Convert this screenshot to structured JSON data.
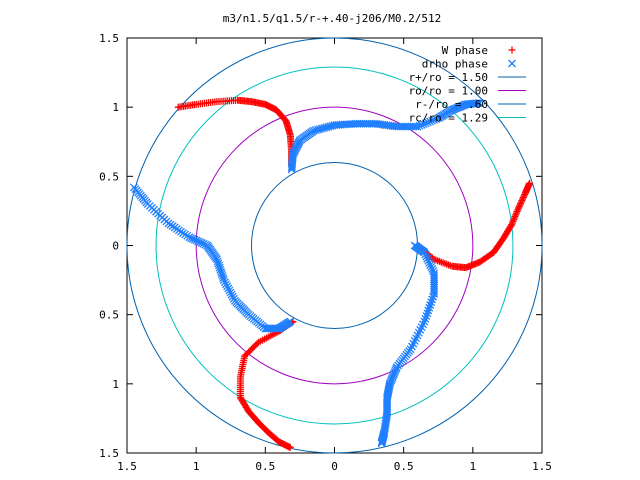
{
  "chart_data": {
    "type": "scatter",
    "title": "m3/n1.5/q1.5/r-+.40-j206/M0.2/512",
    "xlabel": "",
    "ylabel": "",
    "xlim": [
      -1.5,
      1.5
    ],
    "ylim": [
      -1.5,
      1.5
    ],
    "x_ticks": [
      -1.5,
      -1,
      -0.5,
      0,
      0.5,
      1,
      1.5
    ],
    "y_ticks": [
      -1.5,
      -1,
      -0.5,
      0,
      0.5,
      1,
      1.5
    ],
    "x_tick_labels": [
      "1.5",
      "1",
      "0.5",
      "0",
      "0.5",
      "1",
      "1.5"
    ],
    "y_tick_labels": [
      "1.5",
      "1",
      "0.5",
      "0",
      "0.5",
      "1",
      "1.5"
    ],
    "grid": false,
    "legend_position": "top-right",
    "series": [
      {
        "name": "W phase",
        "marker": "plus",
        "color": "#ff0000",
        "arms": [
          {
            "x": [
              -1.13,
              -1.0,
              -0.85,
              -0.7,
              -0.6,
              -0.5,
              -0.42,
              -0.35,
              -0.32,
              -0.31,
              -0.31
            ],
            "y": [
              1.0,
              1.02,
              1.04,
              1.05,
              1.04,
              1.02,
              0.98,
              0.9,
              0.8,
              0.68,
              0.58
            ]
          },
          {
            "x": [
              0.6,
              0.72,
              0.85,
              0.95,
              1.05,
              1.15,
              1.22,
              1.28,
              1.33,
              1.38,
              1.41
            ],
            "y": [
              0.0,
              -0.1,
              -0.15,
              -0.16,
              -0.12,
              -0.05,
              0.05,
              0.15,
              0.27,
              0.38,
              0.45
            ]
          },
          {
            "x": [
              -0.3,
              -0.4,
              -0.55,
              -0.65,
              -0.68,
              -0.68,
              -0.62,
              -0.55,
              -0.48,
              -0.4,
              -0.32
            ],
            "y": [
              -0.55,
              -0.62,
              -0.7,
              -0.8,
              -0.95,
              -1.1,
              -1.2,
              -1.28,
              -1.35,
              -1.42,
              -1.46
            ]
          }
        ]
      },
      {
        "name": "drho phase",
        "marker": "cross",
        "color": "#1f7fff",
        "arms": [
          {
            "x": [
              -0.31,
              -0.3,
              -0.25,
              -0.15,
              0.0,
              0.15,
              0.3,
              0.45,
              0.6,
              0.75,
              0.85,
              0.95,
              1.05
            ],
            "y": [
              0.55,
              0.66,
              0.76,
              0.83,
              0.87,
              0.88,
              0.88,
              0.86,
              0.86,
              0.92,
              0.98,
              1.02,
              1.03
            ]
          },
          {
            "x": [
              0.58,
              0.65,
              0.72,
              0.72,
              0.65,
              0.55,
              0.45,
              0.4,
              0.38,
              0.38,
              0.36,
              0.34
            ],
            "y": [
              0.0,
              -0.05,
              -0.2,
              -0.35,
              -0.55,
              -0.75,
              -0.88,
              -1.0,
              -1.1,
              -1.22,
              -1.35,
              -1.43
            ]
          },
          {
            "x": [
              -1.45,
              -1.35,
              -1.2,
              -1.05,
              -0.92,
              -0.85,
              -0.8,
              -0.72,
              -0.62,
              -0.5,
              -0.4,
              -0.32
            ],
            "y": [
              0.42,
              0.3,
              0.16,
              0.06,
              0.0,
              -0.1,
              -0.25,
              -0.4,
              -0.5,
              -0.6,
              -0.6,
              -0.55
            ]
          }
        ]
      },
      {
        "name": "r+/ro = 1.50",
        "type": "circle",
        "radius": 1.5,
        "color": "#0060ad"
      },
      {
        "name": "ro/ro = 1.00",
        "type": "circle",
        "radius": 1.0,
        "color": "#a000c0"
      },
      {
        "name": "r-/ro = .60",
        "type": "circle",
        "radius": 0.6,
        "color": "#0060ad"
      },
      {
        "name": "rc/ro = 1.29",
        "type": "circle",
        "radius": 1.29,
        "color": "#00c0c0"
      }
    ]
  }
}
